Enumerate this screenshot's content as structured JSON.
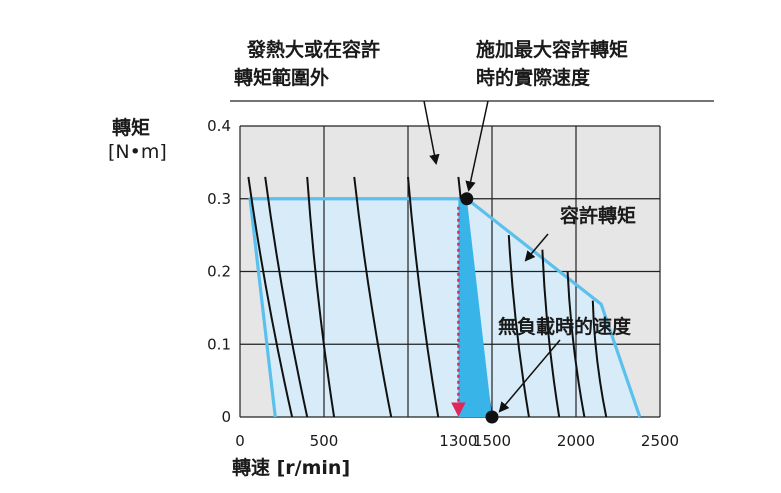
{
  "chart_data": {
    "type": "line",
    "xlabel": "轉速 [r/min]",
    "ylabel": "轉矩",
    "ylabel_unit": "[N•m]",
    "xlim": [
      0,
      2500
    ],
    "ylim": [
      0,
      0.4
    ],
    "x_ticks": [
      0,
      500,
      1300,
      1500,
      2000,
      2500
    ],
    "x_tick_labels": [
      "0",
      "500",
      "1300",
      "1500",
      "2000",
      "2500"
    ],
    "y_ticks": [
      0,
      0.1,
      0.2,
      0.3,
      0.4
    ],
    "y_tick_labels": [
      "0",
      "0.1",
      "0.2",
      "0.3",
      "0.4"
    ],
    "grid": true,
    "grid_x": [
      0,
      500,
      1000,
      1500,
      2000,
      2500
    ],
    "allowable_torque_region": {
      "x": [
        60,
        1350,
        2150,
        2380,
        210
      ],
      "y": [
        0.3,
        0.3,
        0.155,
        0.0,
        0.0
      ]
    },
    "load_lines": [
      {
        "x": [
          50,
          310
        ],
        "y": [
          0.33,
          0.0
        ]
      },
      {
        "x": [
          150,
          400
        ],
        "y": [
          0.33,
          0.0
        ]
      },
      {
        "x": [
          400,
          560
        ],
        "y": [
          0.33,
          0.0
        ]
      },
      {
        "x": [
          680,
          900
        ],
        "y": [
          0.33,
          0.0
        ]
      },
      {
        "x": [
          1000,
          1180
        ],
        "y": [
          0.33,
          0.0
        ]
      },
      {
        "x": [
          1300,
          1500
        ],
        "y": [
          0.33,
          0.0
        ]
      },
      {
        "x": [
          1600,
          1720
        ],
        "y": [
          0.25,
          0.0
        ]
      },
      {
        "x": [
          1800,
          1900
        ],
        "y": [
          0.23,
          0.0
        ]
      },
      {
        "x": [
          1950,
          2050
        ],
        "y": [
          0.2,
          0.0
        ]
      },
      {
        "x": [
          2100,
          2180
        ],
        "y": [
          0.16,
          0.0
        ]
      }
    ],
    "points": [
      {
        "name": "max_torque_point",
        "x": 1350,
        "y": 0.3
      },
      {
        "name": "no_load_point",
        "x": 1500,
        "y": 0.0
      }
    ],
    "drop_line": {
      "x": 1300,
      "y_from": 0.3,
      "y_to": 0.0
    },
    "acceleration_triangle": {
      "x": [
        1300,
        1350,
        1500,
        1300
      ],
      "y": [
        0.3,
        0.3,
        0.0,
        0.0
      ]
    },
    "colors": {
      "region_fill": "#d7ecf8",
      "region_edge": "#5bc0eb",
      "triangle": "#38b4e8",
      "drop_line": "#e0265a",
      "load_line": "#111111",
      "plot_bg": "#e6e6e6",
      "grid": "#222222",
      "point": "#111111"
    }
  },
  "annotations": {
    "outside_region": [
      "發熱大或在容許",
      "轉矩範圍外"
    ],
    "actual_speed": [
      "施加最大容許轉矩",
      "時的實際速度"
    ],
    "allowable_torque": "容許轉矩",
    "no_load_speed": "無負載時的速度"
  }
}
